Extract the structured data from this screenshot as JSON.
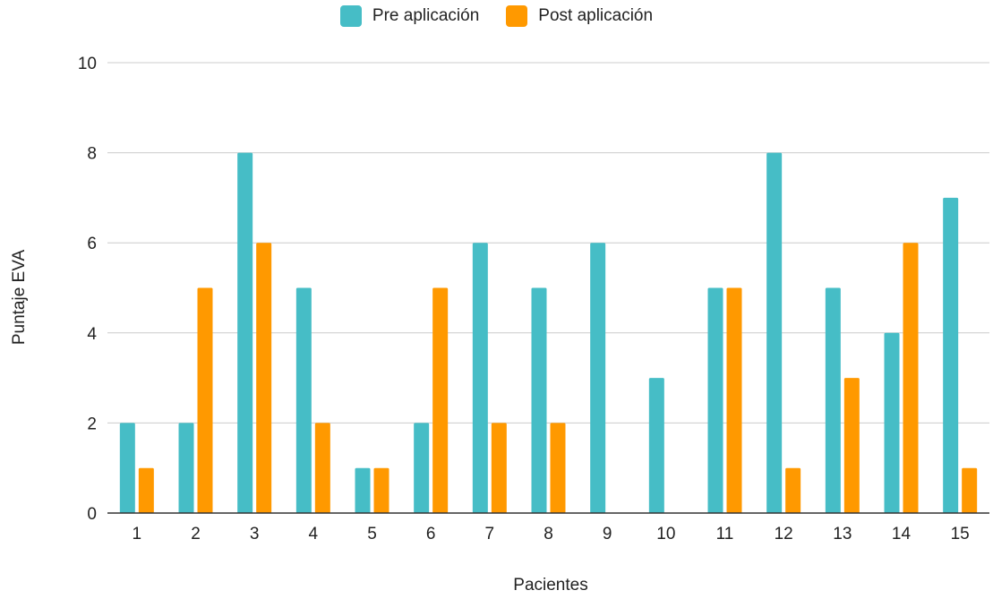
{
  "chart_data": {
    "type": "bar",
    "xlabel": "Pacientes",
    "ylabel": "Puntaje EVA",
    "ylim": [
      0,
      10
    ],
    "yticks": [
      0,
      2,
      4,
      6,
      8,
      10
    ],
    "grid": true,
    "legend_position": "top-center",
    "categories": [
      "1",
      "2",
      "3",
      "4",
      "5",
      "6",
      "7",
      "8",
      "9",
      "10",
      "11",
      "12",
      "13",
      "14",
      "15"
    ],
    "series": [
      {
        "name": "Pre aplicación",
        "color": "#46bdc6",
        "values": [
          2,
          2,
          8,
          5,
          1,
          2,
          6,
          5,
          6,
          3,
          5,
          8,
          5,
          4,
          7
        ]
      },
      {
        "name": "Post aplicación",
        "color": "#ff9900",
        "values": [
          1,
          5,
          6,
          2,
          1,
          5,
          2,
          2,
          0,
          0,
          5,
          1,
          3,
          6,
          1
        ]
      }
    ]
  }
}
